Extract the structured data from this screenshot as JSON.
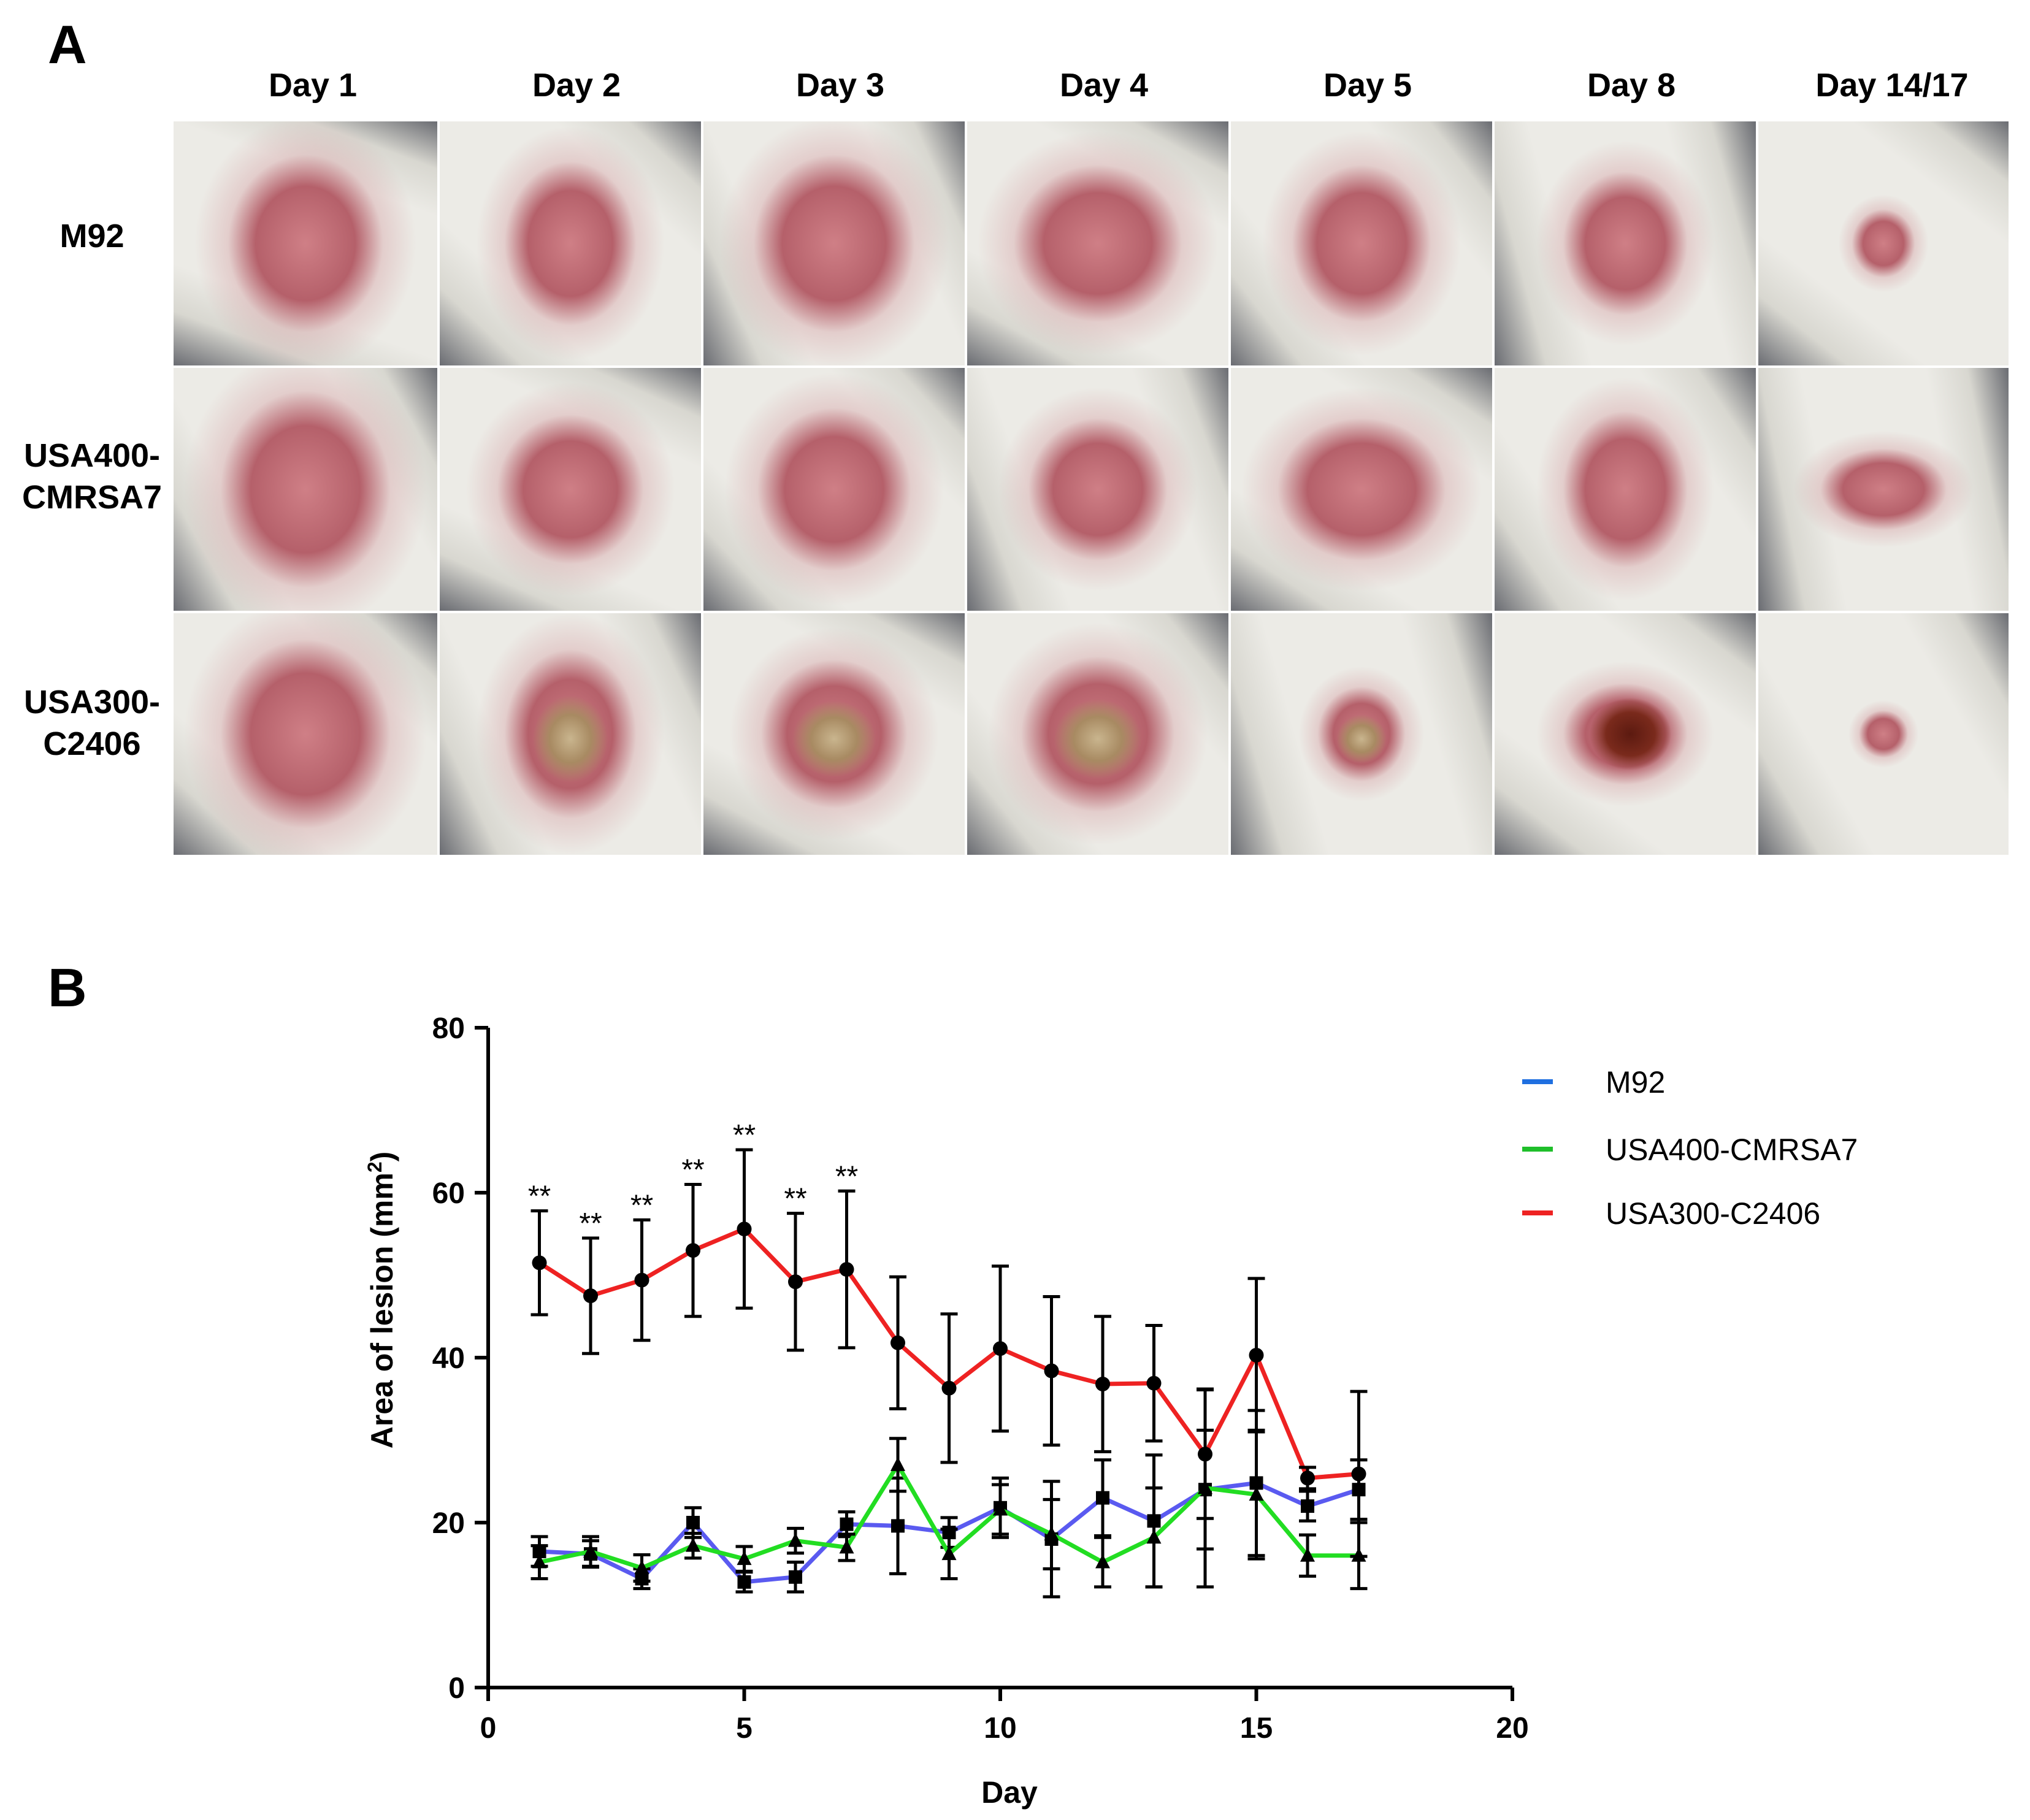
{
  "panels": {
    "a_label": "A",
    "b_label": "B"
  },
  "photo_grid": {
    "columns": [
      "Day 1",
      "Day 2",
      "Day 3",
      "Day 4",
      "Day 5",
      "Day 8",
      "Day 14/17"
    ],
    "rows": [
      {
        "label_lines": [
          "M92"
        ]
      },
      {
        "label_lines": [
          "USA400-",
          "CMRSA7"
        ]
      },
      {
        "label_lines": [
          "USA300-",
          "C2406"
        ]
      }
    ]
  },
  "colors": {
    "M92": "#5a5af0",
    "USA400-CMRSA7": "#22dd22",
    "USA300-C2406": "#ee2222",
    "legend_M92": "#1f6fe0",
    "legend_USA400": "#1fbf2a",
    "legend_USA300": "#ee2222",
    "fur": "#ecebe6",
    "fur_dark": "#d8d7d0",
    "blanket": "#6a6c72",
    "lesion": "#cf7f86",
    "lesion_dark": "#b5606a",
    "scab": "#7a2a1c"
  },
  "chart_data": {
    "type": "line",
    "xlabel": "Day",
    "ylabel": "Area of lesion (mm",
    "ylabel_sup": "2",
    "ylabel_close": ")",
    "xlim": [
      0,
      20
    ],
    "ylim": [
      0,
      80
    ],
    "xticks": [
      0,
      5,
      10,
      15,
      20
    ],
    "yticks": [
      0,
      20,
      40,
      60,
      80
    ],
    "significance_label": "**",
    "significant_days": [
      1,
      2,
      3,
      4,
      5,
      6,
      7
    ],
    "series": [
      {
        "name": "M92",
        "marker": "square",
        "x": [
          1,
          2,
          3,
          4,
          5,
          6,
          7,
          8,
          9,
          10,
          11,
          12,
          13,
          14,
          15,
          16,
          17
        ],
        "y": [
          16.5,
          16.2,
          13.2,
          20.0,
          12.8,
          13.4,
          19.8,
          19.6,
          18.8,
          21.8,
          18.0,
          23.0,
          20.2,
          24.0,
          24.8,
          22.0,
          24.0
        ],
        "err": [
          1.8,
          1.6,
          1.2,
          1.8,
          1.2,
          1.8,
          1.5,
          5.8,
          1.8,
          3.6,
          7.0,
          4.6,
          8.0,
          7.2,
          8.8,
          1.8,
          3.6
        ]
      },
      {
        "name": "USA400-CMRSA7",
        "marker": "triangle",
        "x": [
          1,
          2,
          3,
          4,
          5,
          6,
          7,
          8,
          9,
          10,
          11,
          12,
          13,
          14,
          15,
          16,
          17
        ],
        "y": [
          15.2,
          16.5,
          14.5,
          17.2,
          15.6,
          17.8,
          17.0,
          27.0,
          16.2,
          21.6,
          18.6,
          15.2,
          18.2,
          24.2,
          23.4,
          16.0,
          16.0
        ],
        "err": [
          2.0,
          1.8,
          1.6,
          1.5,
          1.5,
          1.5,
          1.6,
          3.2,
          3.0,
          3.0,
          4.2,
          3.0,
          6.0,
          12.0,
          7.8,
          2.5,
          4.0
        ]
      },
      {
        "name": "USA300-C2406",
        "marker": "circle",
        "x": [
          1,
          2,
          3,
          4,
          5,
          6,
          7,
          8,
          9,
          10,
          11,
          12,
          13,
          14,
          15,
          16,
          17
        ],
        "y": [
          51.5,
          47.5,
          49.4,
          53.0,
          55.6,
          49.2,
          50.7,
          41.8,
          36.3,
          41.1,
          38.4,
          36.8,
          36.9,
          28.3,
          40.3,
          25.4,
          25.9
        ],
        "err": [
          6.3,
          7.0,
          7.3,
          8.0,
          9.6,
          8.3,
          9.5,
          8.0,
          9.0,
          10.0,
          9.0,
          8.2,
          7.0,
          7.8,
          9.3,
          1.3,
          10.0
        ]
      }
    ],
    "legend": [
      "M92",
      "USA400-CMRSA7",
      "USA300-C2406"
    ],
    "legend_position": "right",
    "grid": false
  }
}
